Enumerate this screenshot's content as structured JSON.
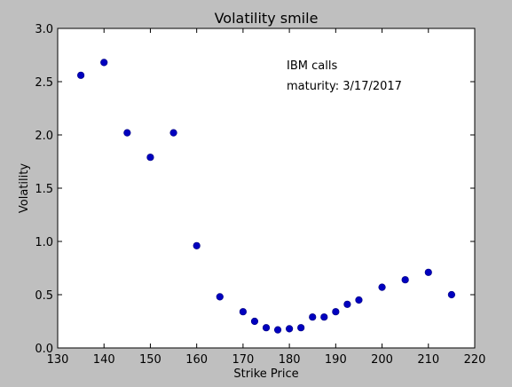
{
  "chart_data": {
    "type": "scatter",
    "title": "Volatility smile",
    "xlabel": "Strike Price",
    "ylabel": "Volatility",
    "xlim": [
      130,
      220
    ],
    "ylim": [
      0.0,
      3.0
    ],
    "xticks": [
      "130",
      "140",
      "150",
      "160",
      "170",
      "180",
      "190",
      "200",
      "210",
      "220"
    ],
    "yticks": [
      "0.0",
      "0.5",
      "1.0",
      "1.5",
      "2.0",
      "2.5",
      "3.0"
    ],
    "grid": false,
    "marker_color": "#0000bf",
    "annotations": [
      "IBM calls",
      "maturity: 3/17/2017"
    ],
    "series": [
      {
        "x": [
          135,
          140,
          145,
          150,
          155,
          160,
          165,
          170,
          172.5,
          175,
          177.5,
          180,
          182.5,
          185,
          187.5,
          190,
          192.5,
          195,
          200,
          205,
          210,
          215
        ],
        "y": [
          2.56,
          2.68,
          2.02,
          1.79,
          2.02,
          0.96,
          0.48,
          0.34,
          0.25,
          0.19,
          0.17,
          0.18,
          0.19,
          0.29,
          0.29,
          0.34,
          0.41,
          0.45,
          0.57,
          0.64,
          0.71,
          0.5
        ]
      }
    ]
  }
}
